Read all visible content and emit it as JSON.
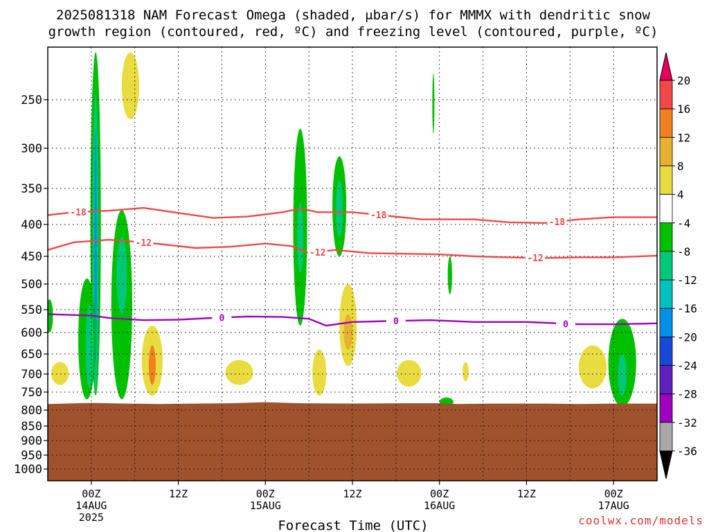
{
  "chart_data": {
    "type": "heatmap",
    "title_line1": "2025081318 NAM Forecast Omega (shaded, μbar/s) for MMMX with dendritic snow",
    "title_line2": "growth region (contoured, red, ºC) and freezing level (contoured, purple, ºC)",
    "xlabel": "Forecast Time (UTC)",
    "credit": "coolwx.com/models",
    "x_range_hours": [
      -5,
      65
    ],
    "y_range_hpa": [
      200,
      1050
    ],
    "y_ticks": [
      250,
      300,
      350,
      400,
      450,
      500,
      550,
      600,
      650,
      700,
      750,
      800,
      850,
      900,
      950,
      1000
    ],
    "y_tick_labels": [
      "250",
      "300",
      "350",
      "400",
      "450",
      "500",
      "550",
      "600",
      "650",
      "700",
      "750",
      "800",
      "850",
      "900",
      "950",
      "1000"
    ],
    "x_ticks": [
      {
        "hour": 0,
        "line1": "00Z",
        "line2": "14AUG",
        "line3": "2025"
      },
      {
        "hour": 10,
        "line1": "12Z",
        "line2": "",
        "line3": ""
      },
      {
        "hour": 20,
        "line1": "00Z",
        "line2": "15AUG",
        "line3": ""
      },
      {
        "hour": 30,
        "line1": "12Z",
        "line2": "",
        "line3": ""
      },
      {
        "hour": 40,
        "line1": "00Z",
        "line2": "16AUG",
        "line3": ""
      },
      {
        "hour": 50,
        "line1": "12Z",
        "line2": "",
        "line3": ""
      },
      {
        "hour": 60,
        "line1": "00Z",
        "line2": "17AUG",
        "line3": ""
      }
    ],
    "colorbar": {
      "labels": [
        "20",
        "16",
        "12",
        "8",
        "4",
        "-4",
        "-8",
        "-12",
        "-16",
        "-20",
        "-24",
        "-28",
        "-32",
        "-36"
      ],
      "colors_top_to_bottom": [
        "#e8005a",
        "#f04848",
        "#f08020",
        "#e8b030",
        "#e8dc40",
        "#ffffff",
        "#00c000",
        "#00c878",
        "#00c0c0",
        "#0090e8",
        "#1848d8",
        "#6020c0",
        "#a000c0",
        "#a8a8a8",
        "#000000"
      ]
    },
    "terrain_color": "#a0522d",
    "terrain_top_hpa": [
      [
        -5,
        783
      ],
      [
        0,
        780
      ],
      [
        4,
        782
      ],
      [
        8,
        783
      ],
      [
        12,
        782
      ],
      [
        16,
        781
      ],
      [
        20,
        778
      ],
      [
        24,
        781
      ],
      [
        30,
        782
      ],
      [
        36,
        781
      ],
      [
        40,
        781
      ],
      [
        42,
        783
      ],
      [
        46,
        782
      ],
      [
        52,
        782
      ],
      [
        56,
        783
      ],
      [
        60,
        782
      ],
      [
        65,
        782
      ]
    ],
    "contours": [
      {
        "label": "-18",
        "color": "#f04848",
        "label_hours": [
          -1.5,
          33,
          53.5
        ],
        "points": [
          [
            -5,
            387
          ],
          [
            -2,
            383
          ],
          [
            2,
            381
          ],
          [
            6,
            377
          ],
          [
            10,
            384
          ],
          [
            14,
            391
          ],
          [
            18,
            389
          ],
          [
            22,
            383
          ],
          [
            24,
            378
          ],
          [
            26,
            383
          ],
          [
            30,
            383
          ],
          [
            34,
            388
          ],
          [
            38,
            393
          ],
          [
            44,
            393
          ],
          [
            48,
            397
          ],
          [
            52,
            398
          ],
          [
            56,
            393
          ],
          [
            60,
            390
          ],
          [
            65,
            390
          ]
        ]
      },
      {
        "label": "-12",
        "color": "#f04848",
        "label_hours": [
          6,
          26,
          51
        ],
        "points": [
          [
            -5,
            440
          ],
          [
            -2,
            428
          ],
          [
            2,
            424
          ],
          [
            5,
            427
          ],
          [
            8,
            431
          ],
          [
            12,
            437
          ],
          [
            16,
            435
          ],
          [
            20,
            430
          ],
          [
            23,
            434
          ],
          [
            25,
            445
          ],
          [
            28,
            440
          ],
          [
            32,
            445
          ],
          [
            36,
            446
          ],
          [
            40,
            447
          ],
          [
            44,
            450
          ],
          [
            48,
            452
          ],
          [
            52,
            453
          ],
          [
            56,
            452
          ],
          [
            60,
            452
          ],
          [
            65,
            449
          ]
        ]
      },
      {
        "label": "0",
        "color": "#a000c0",
        "label_hours": [
          15,
          35,
          54.5
        ],
        "points": [
          [
            -5,
            560
          ],
          [
            0,
            563
          ],
          [
            2,
            568
          ],
          [
            6,
            573
          ],
          [
            10,
            572
          ],
          [
            14,
            568
          ],
          [
            18,
            565
          ],
          [
            22,
            566
          ],
          [
            25,
            570
          ],
          [
            27,
            585
          ],
          [
            30,
            577
          ],
          [
            34,
            575
          ],
          [
            39,
            573
          ],
          [
            44,
            577
          ],
          [
            50,
            577
          ],
          [
            56,
            582
          ],
          [
            60,
            582
          ],
          [
            65,
            580
          ]
        ]
      }
    ],
    "shaded_cells": [
      {
        "color": "#00c000",
        "hour": 0.5,
        "p_top": 205,
        "p_bot": 760,
        "half_width": 0.6
      },
      {
        "color": "#00c878",
        "hour": 0.5,
        "p_top": 245,
        "p_bot": 750,
        "half_width": 0.35
      },
      {
        "color": "#0090e8",
        "hour": 0.5,
        "p_top": 280,
        "p_bot": 680,
        "half_width": 0.15
      },
      {
        "color": "#00c000",
        "hour": -0.5,
        "p_top": 490,
        "p_bot": 770,
        "half_width": 1.0
      },
      {
        "color": "#00c878",
        "hour": -0.2,
        "p_top": 540,
        "p_bot": 740,
        "half_width": 0.45
      },
      {
        "color": "#00c000",
        "hour": 3.5,
        "p_top": 380,
        "p_bot": 770,
        "half_width": 1.2
      },
      {
        "color": "#00c878",
        "hour": 3.5,
        "p_top": 420,
        "p_bot": 560,
        "half_width": 0.6
      },
      {
        "color": "#00c000",
        "hour": 24,
        "p_top": 280,
        "p_bot": 585,
        "half_width": 0.8
      },
      {
        "color": "#00c878",
        "hour": 24,
        "p_top": 370,
        "p_bot": 480,
        "half_width": 0.35
      },
      {
        "color": "#00c000",
        "hour": 28.5,
        "p_top": 310,
        "p_bot": 450,
        "half_width": 0.8
      },
      {
        "color": "#00c878",
        "hour": 28.5,
        "p_top": 340,
        "p_bot": 420,
        "half_width": 0.4
      },
      {
        "color": "#00c000",
        "hour": 39.3,
        "p_top": 225,
        "p_bot": 285,
        "half_width": 0.12
      },
      {
        "color": "#00c000",
        "hour": 41.2,
        "p_top": 450,
        "p_bot": 520,
        "half_width": 0.25
      },
      {
        "color": "#00c000",
        "hour": 40.8,
        "p_top": 765,
        "p_bot": 790,
        "half_width": 0.8
      },
      {
        "color": "#00c000",
        "hour": 61,
        "p_top": 570,
        "p_bot": 790,
        "half_width": 1.6
      },
      {
        "color": "#00c878",
        "hour": 61,
        "p_top": 650,
        "p_bot": 760,
        "half_width": 0.5
      },
      {
        "color": "#00c000",
        "hour": -4.8,
        "p_top": 530,
        "p_bot": 600,
        "half_width": 0.4
      },
      {
        "color": "#e8dc40",
        "hour": 4.5,
        "p_top": 205,
        "p_bot": 270,
        "half_width": 1.0
      },
      {
        "color": "#e8dc40",
        "hour": 7,
        "p_top": 585,
        "p_bot": 760,
        "half_width": 1.2
      },
      {
        "color": "#f08020",
        "hour": 7,
        "p_top": 630,
        "p_bot": 730,
        "half_width": 0.4
      },
      {
        "color": "#e8dc40",
        "hour": -3.6,
        "p_top": 670,
        "p_bot": 730,
        "half_width": 1.0
      },
      {
        "color": "#e8dc40",
        "hour": 17,
        "p_top": 665,
        "p_bot": 730,
        "half_width": 1.6
      },
      {
        "color": "#e8dc40",
        "hour": 26.2,
        "p_top": 640,
        "p_bot": 760,
        "half_width": 0.8
      },
      {
        "color": "#e8dc40",
        "hour": 29.5,
        "p_top": 500,
        "p_bot": 680,
        "half_width": 1.0
      },
      {
        "color": "#e8b030",
        "hour": 29.5,
        "p_top": 560,
        "p_bot": 640,
        "half_width": 0.5
      },
      {
        "color": "#e8dc40",
        "hour": 36.5,
        "p_top": 665,
        "p_bot": 735,
        "half_width": 1.4
      },
      {
        "color": "#e8dc40",
        "hour": 43,
        "p_top": 670,
        "p_bot": 720,
        "half_width": 0.35
      },
      {
        "color": "#e8dc40",
        "hour": 57.6,
        "p_top": 630,
        "p_bot": 740,
        "half_width": 1.6
      }
    ]
  }
}
